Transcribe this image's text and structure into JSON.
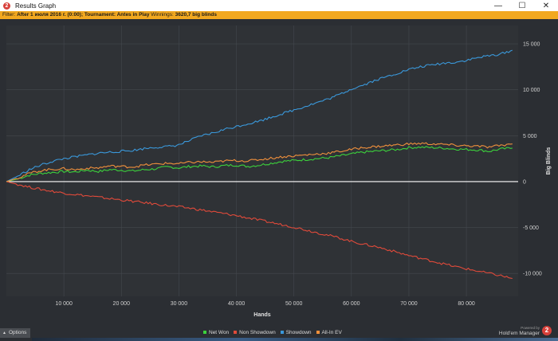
{
  "window": {
    "title": "Results Graph",
    "app_icon_glyph": "2",
    "minimize_glyph": "—",
    "maximize_glyph": "☐",
    "close_glyph": "✕"
  },
  "filter": {
    "label": "Filter:",
    "value": "After 1 июля 2016 г. (0:00); Tournament: Antes in Play",
    "winnings_label": "Winnings:",
    "winnings_value": "3620,7 big blinds"
  },
  "chart_data": {
    "type": "line",
    "xlabel": "Hands",
    "ylabel": "Big Blinds",
    "xlim": [
      0,
      89000
    ],
    "ylim": [
      -12500,
      17000
    ],
    "x_ticks": [
      10000,
      20000,
      30000,
      40000,
      50000,
      60000,
      70000,
      80000
    ],
    "x_tick_labels": [
      "10 000",
      "20 000",
      "30 000",
      "40 000",
      "50 000",
      "60 000",
      "70 000",
      "80 000"
    ],
    "y_ticks": [
      15000,
      10000,
      5000,
      0,
      -5000,
      -10000
    ],
    "y_tick_labels": [
      "15 000",
      "10 000",
      "5 000",
      "0",
      "-5 000",
      "-10 000"
    ],
    "grid": true,
    "legend_position": "bottom-center",
    "x": [
      0,
      2000,
      4000,
      6000,
      8000,
      10000,
      12000,
      14000,
      16000,
      18000,
      20000,
      22000,
      24000,
      26000,
      28000,
      30000,
      32000,
      34000,
      36000,
      38000,
      40000,
      42000,
      44000,
      46000,
      48000,
      50000,
      52000,
      54000,
      56000,
      58000,
      60000,
      62000,
      64000,
      66000,
      68000,
      70000,
      72000,
      74000,
      76000,
      78000,
      80000,
      82000,
      84000,
      86000,
      88000
    ],
    "series": [
      {
        "name": "Net Won",
        "color": "#3cd23c",
        "values": [
          0,
          300,
          700,
          900,
          1000,
          1100,
          1050,
          1250,
          1100,
          1300,
          1250,
          1150,
          1300,
          1400,
          1600,
          1500,
          1650,
          1700,
          1600,
          1750,
          1800,
          1650,
          1800,
          2000,
          2200,
          2300,
          2400,
          2500,
          2600,
          2800,
          3000,
          3200,
          3300,
          3400,
          3500,
          3700,
          3750,
          3700,
          3650,
          3550,
          3500,
          3450,
          3300,
          3550,
          3650
        ]
      },
      {
        "name": "Non Showdown",
        "color": "#e04a3a",
        "values": [
          0,
          -300,
          -600,
          -850,
          -1050,
          -1250,
          -1400,
          -1550,
          -1700,
          -1850,
          -2000,
          -2150,
          -2300,
          -2450,
          -2600,
          -2750,
          -2900,
          -3100,
          -3300,
          -3500,
          -3700,
          -3950,
          -4200,
          -4450,
          -4700,
          -4950,
          -5250,
          -5550,
          -5850,
          -6150,
          -6500,
          -6800,
          -7050,
          -7350,
          -7700,
          -8050,
          -8350,
          -8650,
          -8950,
          -9250,
          -9500,
          -9750,
          -10000,
          -10250,
          -10550
        ]
      },
      {
        "name": "Showdown",
        "color": "#3a98da",
        "values": [
          0,
          600,
          1300,
          1800,
          2200,
          2500,
          2700,
          2900,
          3100,
          3200,
          3300,
          3400,
          3600,
          3750,
          3800,
          4000,
          4500,
          5000,
          5300,
          5700,
          6000,
          6300,
          6600,
          7000,
          7400,
          7800,
          8200,
          8600,
          9000,
          9500,
          10100,
          10500,
          11000,
          11400,
          11800,
          12200,
          12500,
          12700,
          12900,
          13000,
          13200,
          13500,
          13700,
          13900,
          14300
        ]
      },
      {
        "name": "All-In EV",
        "color": "#f0903c",
        "values": [
          0,
          400,
          900,
          1200,
          1350,
          1400,
          1300,
          1450,
          1500,
          1700,
          1650,
          1600,
          1800,
          1900,
          2000,
          1950,
          2100,
          2150,
          2100,
          2250,
          2300,
          2250,
          2400,
          2550,
          2700,
          2800,
          2900,
          3000,
          3100,
          3300,
          3500,
          3700,
          3800,
          3900,
          4000,
          4100,
          4150,
          4100,
          4050,
          3950,
          3900,
          3850,
          3750,
          3950,
          4100
        ]
      }
    ]
  },
  "options": {
    "label": "Options",
    "caret": "▲"
  },
  "brand": {
    "line1": "Powered by",
    "line2": "Hold'em Manager",
    "icon_glyph": "2"
  },
  "colors": {
    "filter_bar": "#f2a81f",
    "plot_bg": "#2f3236",
    "zero_line": "#ffffff"
  }
}
